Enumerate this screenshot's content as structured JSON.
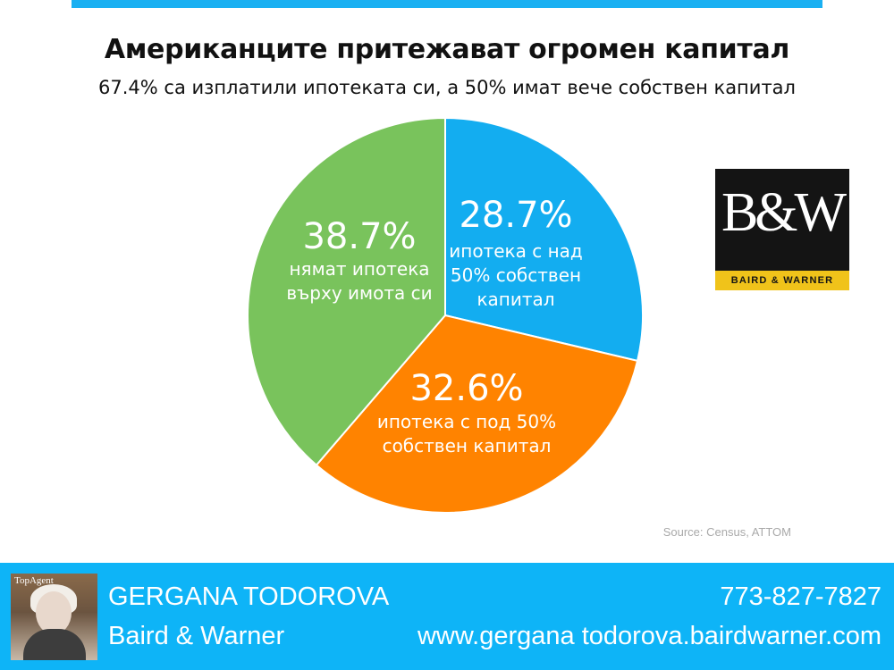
{
  "header": {
    "title": "Американците притежават огромен капитал",
    "subtitle": "67.4% са изплатили ипотеката си, а 50% имат вече собствен капитал"
  },
  "chart_data": {
    "type": "pie",
    "title": "Американците притежават огромен капитал",
    "subtitle": "67.4% са изплатили ипотеката си, а 50% имат вече собствен капитал",
    "slices": [
      {
        "value": 28.7,
        "label": "28.7%",
        "desc": [
          "ипотека с над",
          "50% собствен",
          "капитал"
        ],
        "color": "#13adf0"
      },
      {
        "value": 32.6,
        "label": "32.6%",
        "desc": [
          "ипотека с под 50%",
          "собствен капитал"
        ],
        "color": "#ff8300"
      },
      {
        "value": 38.7,
        "label": "38.7%",
        "desc": [
          "нямат ипотека",
          "върху имота си"
        ],
        "color": "#79c35c"
      }
    ],
    "start": "12 o'clock, clockwise"
  },
  "source": "Source: Census, ATTOM",
  "logo": {
    "mark": "B&W",
    "name": "BAIRD & WARNER",
    "colors": {
      "background": "#141414",
      "band": "#f0c31a",
      "mark": "#ffffff"
    }
  },
  "footer": {
    "agent_name": "GERGANA TODOROVA",
    "company": "Baird & Warner",
    "phone": "773-827-7827",
    "website": "www.gergana todorova.bairdwarner.com",
    "photo_badge": "Top Agent Magazine",
    "colors": {
      "background": "#0eb4f7",
      "text": "#ffffff"
    }
  },
  "accent": "#1ab0f2"
}
